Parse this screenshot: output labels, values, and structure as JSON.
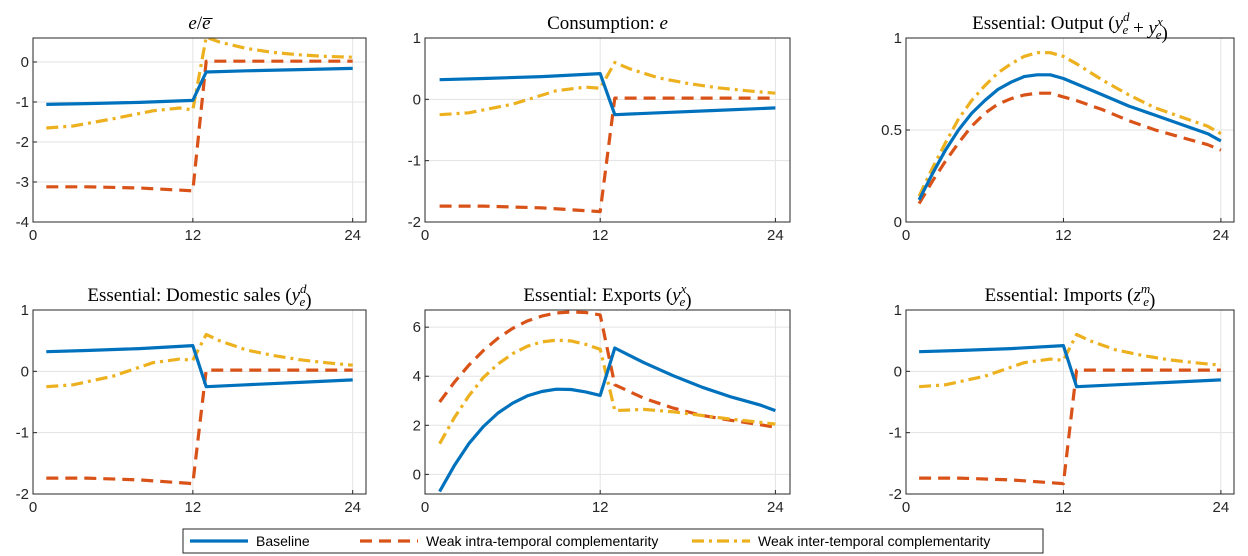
{
  "colors": {
    "baseline": "#0072BD",
    "intra": "#D95319",
    "inter": "#EDB120",
    "grid": "#e3e3e3",
    "axis": "#262626"
  },
  "legend": {
    "placement": "bottom-center",
    "items": [
      {
        "label": "Baseline",
        "style": "solid",
        "series": "baseline"
      },
      {
        "label": "Weak intra-temporal complementarity",
        "style": "dashed",
        "series": "intra"
      },
      {
        "label": "Weak inter-temporal complementarity",
        "style": "dashdot",
        "series": "inter"
      }
    ]
  },
  "chart_data": [
    {
      "type": "line",
      "title": "e/ē",
      "title_parts": [
        [
          "e",
          "it"
        ],
        [
          "/",
          ""
        ],
        [
          "e",
          "it-over"
        ]
      ],
      "xlim": [
        0,
        25
      ],
      "ylim": [
        -4,
        0.6
      ],
      "xticks": [
        0,
        12,
        24
      ],
      "yticks": [
        -4,
        -3,
        -2,
        -1,
        0
      ],
      "grid": true,
      "series": {
        "baseline": [
          [
            1,
            -1.06
          ],
          [
            4,
            -1.04
          ],
          [
            8,
            -1.01
          ],
          [
            12,
            -0.96
          ],
          [
            13,
            -0.25
          ],
          [
            16,
            -0.22
          ],
          [
            20,
            -0.19
          ],
          [
            24,
            -0.16
          ]
        ],
        "intra": [
          [
            1,
            -3.12
          ],
          [
            4,
            -3.12
          ],
          [
            8,
            -3.15
          ],
          [
            12,
            -3.22
          ],
          [
            13,
            0.02
          ],
          [
            16,
            0.02
          ],
          [
            20,
            0.02
          ],
          [
            24,
            0.02
          ]
        ],
        "inter": [
          [
            1,
            -1.65
          ],
          [
            3,
            -1.6
          ],
          [
            6,
            -1.42
          ],
          [
            9,
            -1.22
          ],
          [
            11,
            -1.15
          ],
          [
            12,
            -1.2
          ],
          [
            13,
            0.62
          ],
          [
            14,
            0.5
          ],
          [
            16,
            0.34
          ],
          [
            18,
            0.24
          ],
          [
            20,
            0.18
          ],
          [
            22,
            0.14
          ],
          [
            24,
            0.12
          ]
        ]
      }
    },
    {
      "type": "line",
      "title": "Consumption: e",
      "title_parts": [
        [
          "Consumption: ",
          ""
        ],
        [
          "e",
          "it"
        ]
      ],
      "xlim": [
        0,
        25
      ],
      "ylim": [
        -2,
        1
      ],
      "xticks": [
        0,
        12,
        24
      ],
      "yticks": [
        -2,
        -1,
        0,
        1
      ],
      "grid": true,
      "series": {
        "baseline": [
          [
            1,
            0.32
          ],
          [
            4,
            0.34
          ],
          [
            8,
            0.37
          ],
          [
            12,
            0.42
          ],
          [
            13,
            -0.25
          ],
          [
            16,
            -0.22
          ],
          [
            20,
            -0.18
          ],
          [
            24,
            -0.14
          ]
        ],
        "intra": [
          [
            1,
            -1.74
          ],
          [
            4,
            -1.74
          ],
          [
            8,
            -1.77
          ],
          [
            12,
            -1.83
          ],
          [
            13,
            0.02
          ],
          [
            16,
            0.02
          ],
          [
            20,
            0.02
          ],
          [
            24,
            0.02
          ]
        ],
        "inter": [
          [
            1,
            -0.25
          ],
          [
            3,
            -0.22
          ],
          [
            6,
            -0.08
          ],
          [
            9,
            0.14
          ],
          [
            11,
            0.2
          ],
          [
            12,
            0.18
          ],
          [
            13,
            0.6
          ],
          [
            14,
            0.5
          ],
          [
            16,
            0.35
          ],
          [
            18,
            0.26
          ],
          [
            20,
            0.19
          ],
          [
            22,
            0.14
          ],
          [
            24,
            0.1
          ]
        ]
      }
    },
    {
      "type": "line",
      "title": "Essential: Output (y_e^d + y_e^x)",
      "title_parts": [
        [
          "Essential: Output (",
          ""
        ],
        [
          "y",
          "sub-sup:e:d"
        ],
        [
          " + ",
          ""
        ],
        [
          "y",
          "sub-sup:e:x"
        ],
        [
          ")",
          ""
        ]
      ],
      "xlim": [
        0,
        25
      ],
      "ylim": [
        0,
        1
      ],
      "xticks": [
        0,
        12,
        24
      ],
      "yticks": [
        0,
        0.5,
        1
      ],
      "grid": true,
      "series": {
        "baseline": [
          [
            1,
            0.12
          ],
          [
            2,
            0.26
          ],
          [
            3,
            0.39
          ],
          [
            4,
            0.5
          ],
          [
            5,
            0.59
          ],
          [
            6,
            0.66
          ],
          [
            7,
            0.72
          ],
          [
            8,
            0.76
          ],
          [
            9,
            0.79
          ],
          [
            10,
            0.8
          ],
          [
            11,
            0.8
          ],
          [
            12,
            0.78
          ],
          [
            13,
            0.75
          ],
          [
            15,
            0.69
          ],
          [
            17,
            0.63
          ],
          [
            19,
            0.58
          ],
          [
            21,
            0.53
          ],
          [
            23,
            0.48
          ],
          [
            24,
            0.44
          ]
        ],
        "intra": [
          [
            1,
            0.1
          ],
          [
            2,
            0.22
          ],
          [
            3,
            0.33
          ],
          [
            4,
            0.43
          ],
          [
            5,
            0.52
          ],
          [
            6,
            0.59
          ],
          [
            7,
            0.64
          ],
          [
            8,
            0.67
          ],
          [
            9,
            0.69
          ],
          [
            10,
            0.7
          ],
          [
            11,
            0.7
          ],
          [
            12,
            0.68
          ],
          [
            13,
            0.66
          ],
          [
            15,
            0.61
          ],
          [
            17,
            0.55
          ],
          [
            19,
            0.5
          ],
          [
            21,
            0.46
          ],
          [
            23,
            0.42
          ],
          [
            24,
            0.39
          ]
        ],
        "inter": [
          [
            1,
            0.14
          ],
          [
            2,
            0.29
          ],
          [
            3,
            0.43
          ],
          [
            4,
            0.56
          ],
          [
            5,
            0.66
          ],
          [
            6,
            0.74
          ],
          [
            7,
            0.81
          ],
          [
            8,
            0.86
          ],
          [
            9,
            0.9
          ],
          [
            10,
            0.92
          ],
          [
            11,
            0.92
          ],
          [
            12,
            0.9
          ],
          [
            13,
            0.86
          ],
          [
            15,
            0.77
          ],
          [
            17,
            0.69
          ],
          [
            19,
            0.62
          ],
          [
            21,
            0.57
          ],
          [
            23,
            0.52
          ],
          [
            24,
            0.48
          ]
        ]
      }
    },
    {
      "type": "line",
      "title": "Essential: Domestic sales (y_e^d)",
      "title_parts": [
        [
          "Essential: Domestic sales (",
          ""
        ],
        [
          "y",
          "sub-sup:e:d"
        ],
        [
          ")",
          ""
        ]
      ],
      "xlim": [
        0,
        25
      ],
      "ylim": [
        -2,
        1
      ],
      "xticks": [
        0,
        12,
        24
      ],
      "yticks": [
        -2,
        -1,
        0,
        1
      ],
      "grid": true,
      "series": {
        "baseline": [
          [
            1,
            0.32
          ],
          [
            4,
            0.34
          ],
          [
            8,
            0.37
          ],
          [
            12,
            0.42
          ],
          [
            13,
            -0.25
          ],
          [
            16,
            -0.22
          ],
          [
            20,
            -0.18
          ],
          [
            24,
            -0.14
          ]
        ],
        "intra": [
          [
            1,
            -1.74
          ],
          [
            4,
            -1.74
          ],
          [
            8,
            -1.77
          ],
          [
            12,
            -1.83
          ],
          [
            13,
            0.02
          ],
          [
            16,
            0.02
          ],
          [
            20,
            0.02
          ],
          [
            24,
            0.02
          ]
        ],
        "inter": [
          [
            1,
            -0.25
          ],
          [
            3,
            -0.22
          ],
          [
            6,
            -0.08
          ],
          [
            9,
            0.14
          ],
          [
            11,
            0.2
          ],
          [
            12,
            0.18
          ],
          [
            13,
            0.6
          ],
          [
            14,
            0.5
          ],
          [
            16,
            0.35
          ],
          [
            18,
            0.26
          ],
          [
            20,
            0.19
          ],
          [
            22,
            0.14
          ],
          [
            24,
            0.1
          ]
        ]
      }
    },
    {
      "type": "line",
      "title": "Essential: Exports (y_e^x)",
      "title_parts": [
        [
          "Essential: Exports (",
          ""
        ],
        [
          "y",
          "sub-sup:e:x"
        ],
        [
          ")",
          ""
        ]
      ],
      "xlim": [
        0,
        25
      ],
      "ylim": [
        -0.8,
        6.7
      ],
      "xticks": [
        0,
        12,
        24
      ],
      "yticks": [
        0,
        2,
        4,
        6
      ],
      "grid": true,
      "series": {
        "baseline": [
          [
            1,
            -0.7
          ],
          [
            2,
            0.35
          ],
          [
            3,
            1.25
          ],
          [
            4,
            1.95
          ],
          [
            5,
            2.5
          ],
          [
            6,
            2.9
          ],
          [
            7,
            3.2
          ],
          [
            8,
            3.38
          ],
          [
            9,
            3.47
          ],
          [
            10,
            3.46
          ],
          [
            11,
            3.36
          ],
          [
            12,
            3.22
          ],
          [
            13,
            5.15
          ],
          [
            15,
            4.55
          ],
          [
            17,
            4.02
          ],
          [
            19,
            3.55
          ],
          [
            21,
            3.15
          ],
          [
            23,
            2.82
          ],
          [
            24,
            2.6
          ]
        ],
        "intra": [
          [
            1,
            2.95
          ],
          [
            2,
            3.75
          ],
          [
            3,
            4.45
          ],
          [
            4,
            5.05
          ],
          [
            5,
            5.55
          ],
          [
            6,
            5.95
          ],
          [
            7,
            6.25
          ],
          [
            8,
            6.45
          ],
          [
            9,
            6.58
          ],
          [
            10,
            6.62
          ],
          [
            11,
            6.6
          ],
          [
            12,
            6.5
          ],
          [
            13,
            3.65
          ],
          [
            15,
            3.1
          ],
          [
            17,
            2.7
          ],
          [
            19,
            2.4
          ],
          [
            21,
            2.2
          ],
          [
            23,
            2.02
          ],
          [
            24,
            1.92
          ]
        ],
        "inter": [
          [
            1,
            1.25
          ],
          [
            2,
            2.3
          ],
          [
            3,
            3.2
          ],
          [
            4,
            3.95
          ],
          [
            5,
            4.5
          ],
          [
            6,
            4.92
          ],
          [
            7,
            5.22
          ],
          [
            8,
            5.4
          ],
          [
            9,
            5.47
          ],
          [
            10,
            5.44
          ],
          [
            11,
            5.3
          ],
          [
            12,
            5.1
          ],
          [
            13,
            2.6
          ],
          [
            15,
            2.65
          ],
          [
            17,
            2.55
          ],
          [
            19,
            2.4
          ],
          [
            21,
            2.25
          ],
          [
            23,
            2.12
          ],
          [
            24,
            2.05
          ]
        ]
      }
    },
    {
      "type": "line",
      "title": "Essential: Imports (z_e^m)",
      "title_parts": [
        [
          "Essential: Imports (",
          ""
        ],
        [
          "z",
          "sub-sup:e:m"
        ],
        [
          ")",
          ""
        ]
      ],
      "xlim": [
        0,
        25
      ],
      "ylim": [
        -2,
        1
      ],
      "xticks": [
        0,
        12,
        24
      ],
      "yticks": [
        -2,
        -1,
        0,
        1
      ],
      "grid": true,
      "series": {
        "baseline": [
          [
            1,
            0.32
          ],
          [
            4,
            0.34
          ],
          [
            8,
            0.37
          ],
          [
            12,
            0.42
          ],
          [
            13,
            -0.25
          ],
          [
            16,
            -0.22
          ],
          [
            20,
            -0.18
          ],
          [
            24,
            -0.14
          ]
        ],
        "intra": [
          [
            1,
            -1.74
          ],
          [
            4,
            -1.74
          ],
          [
            8,
            -1.77
          ],
          [
            12,
            -1.83
          ],
          [
            13,
            0.02
          ],
          [
            16,
            0.02
          ],
          [
            20,
            0.02
          ],
          [
            24,
            0.02
          ]
        ],
        "inter": [
          [
            1,
            -0.25
          ],
          [
            3,
            -0.22
          ],
          [
            6,
            -0.08
          ],
          [
            9,
            0.14
          ],
          [
            11,
            0.2
          ],
          [
            12,
            0.18
          ],
          [
            13,
            0.6
          ],
          [
            14,
            0.5
          ],
          [
            16,
            0.35
          ],
          [
            18,
            0.26
          ],
          [
            20,
            0.19
          ],
          [
            22,
            0.14
          ],
          [
            24,
            0.1
          ]
        ]
      }
    }
  ]
}
